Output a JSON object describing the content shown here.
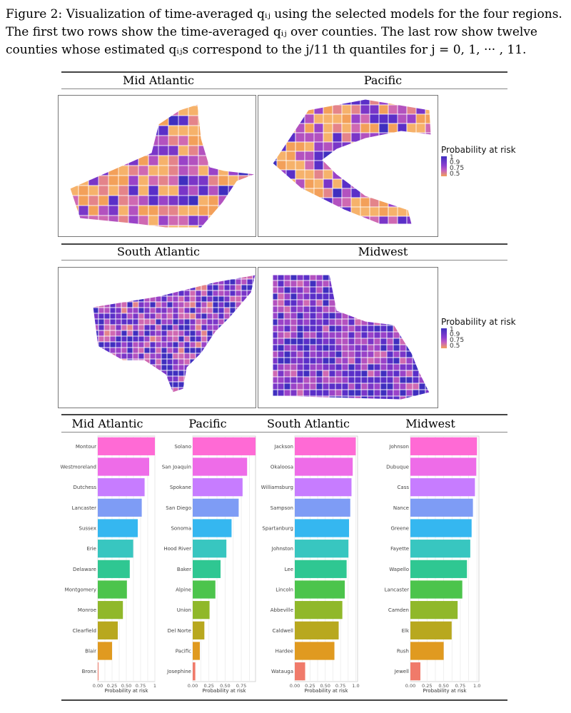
{
  "caption": {
    "line1": "Figure 2: Visualization of time-averaged qᵢⱼ using the selected models for the four regions.",
    "line2": "The first two rows show the time-averaged qᵢⱼ over counties.  The last row show twelve",
    "line3": "counties whose estimated qᵢⱼs correspond to the j/11 th quantiles for j = 0, 1, ··· , 11."
  },
  "maps": {
    "row1": {
      "left": "Mid Atlantic",
      "right": "Pacific"
    },
    "row2": {
      "left": "South Atlantic",
      "right": "Midwest"
    },
    "legend_title": "Probability at risk",
    "legend_ticks": [
      "1",
      "0.9",
      "0.75",
      "0.5"
    ]
  },
  "colors": {
    "low": "#f3a05a",
    "mid": "#c25fc0",
    "high": "#3f2fbf",
    "bars": [
      "#ff6ad5",
      "#ee6ce8",
      "#c77cff",
      "#7e9cf5",
      "#35b7f0",
      "#38c6c0",
      "#2fc792",
      "#4cc44c",
      "#90b82a",
      "#b8a81f",
      "#e09a20",
      "#f07a6a"
    ]
  },
  "chart_data": [
    {
      "type": "bar",
      "title": "Mid Atlantic",
      "categories": [
        "Montour",
        "Westmoreland",
        "Dutchess",
        "Lancaster",
        "Sussex",
        "Erie",
        "Delaware",
        "Montgomery",
        "Monroe",
        "Clearfield",
        "Blair",
        "Bronx"
      ],
      "values": [
        1.0,
        0.9,
        0.82,
        0.77,
        0.7,
        0.62,
        0.56,
        0.51,
        0.44,
        0.35,
        0.25,
        0.0
      ],
      "xlabel": "Probability at risk",
      "xticks": [
        "0.00",
        "0.25",
        "0.50",
        "0.75",
        "1"
      ],
      "xlim": [
        0,
        1.0
      ]
    },
    {
      "type": "bar",
      "title": "Pacific",
      "categories": [
        "Solano",
        "San Joaquin",
        "Spokane",
        "San Diego",
        "Sonoma",
        "Hood River",
        "Baker",
        "Alpine",
        "Union",
        "Del Norte",
        "Pacific",
        "Josephine"
      ],
      "values": [
        0.97,
        0.84,
        0.77,
        0.71,
        0.6,
        0.52,
        0.43,
        0.35,
        0.26,
        0.18,
        0.11,
        0.04
      ],
      "xlabel": "Probability at risk",
      "xticks": [
        "0.00",
        "0.25",
        "0.50",
        "0.75"
      ],
      "xlim": [
        0,
        0.97
      ]
    },
    {
      "type": "bar",
      "title": "South Atlantic",
      "categories": [
        "Jackson",
        "Okaloosa",
        "Williamsburg",
        "Sampson",
        "Spartanburg",
        "Johnston",
        "Lee",
        "Lincoln",
        "Abbeville",
        "Caldwell",
        "Hardee",
        "Watauga"
      ],
      "values": [
        1.0,
        0.95,
        0.93,
        0.91,
        0.89,
        0.88,
        0.85,
        0.82,
        0.78,
        0.72,
        0.65,
        0.17
      ],
      "xlabel": "Probability at risk",
      "xticks": [
        "0.00",
        "0.25",
        "0.50",
        "0.75",
        "1.0"
      ],
      "xlim": [
        0,
        1.03
      ]
    },
    {
      "type": "bar",
      "title": "Midwest",
      "categories": [
        "Johnson",
        "Dubuque",
        "Cass",
        "Nance",
        "Greene",
        "Fayette",
        "Wapello",
        "Lancaster",
        "Camden",
        "Elk",
        "Rush",
        "Jewell"
      ],
      "values": [
        1.0,
        0.99,
        0.97,
        0.94,
        0.92,
        0.9,
        0.85,
        0.78,
        0.71,
        0.62,
        0.5,
        0.15
      ],
      "xlabel": "Probability at risk",
      "xticks": [
        "0.00",
        "0.25",
        "0.50",
        "0.75",
        "1.0"
      ],
      "xlim": [
        0,
        1.03
      ]
    }
  ]
}
